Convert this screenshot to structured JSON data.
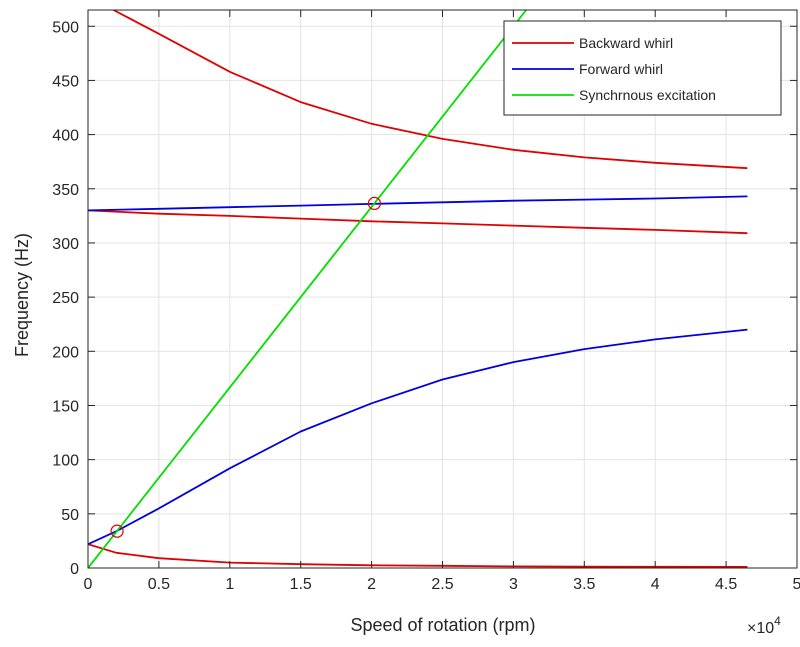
{
  "chart_data": {
    "type": "line",
    "title": "",
    "xlabel": "Speed of rotation (rpm)",
    "ylabel": "Frequency (Hz)",
    "x_exponent_label": "×10",
    "x_exponent_power": "4",
    "xlim": [
      0,
      50000
    ],
    "ylim": [
      0,
      515
    ],
    "xticks": [
      0,
      5000,
      10000,
      15000,
      20000,
      25000,
      30000,
      35000,
      40000,
      45000,
      50000
    ],
    "xtick_labels": [
      "0",
      "0.5",
      "1",
      "1.5",
      "2",
      "2.5",
      "3",
      "3.5",
      "4",
      "4.5",
      "5"
    ],
    "yticks": [
      0,
      50,
      100,
      150,
      200,
      250,
      300,
      350,
      400,
      450,
      500
    ],
    "ytick_labels": [
      "0",
      "50",
      "100",
      "150",
      "200",
      "250",
      "300",
      "350",
      "400",
      "450",
      "500"
    ],
    "grid": true,
    "legend_position": "top-right",
    "legend": [
      {
        "label": "Backward whirl",
        "color": "#e00000"
      },
      {
        "label": "Forward whirl",
        "color": "#0000e0"
      },
      {
        "label": "Synchrnous excitation",
        "color": "#00e000"
      }
    ],
    "series": [
      {
        "group": "Backward whirl",
        "color": "#e00000",
        "x": [
          0,
          2000,
          5000,
          10000,
          15000,
          20000,
          25000,
          30000,
          35000,
          40000,
          46500
        ],
        "y": [
          22,
          14,
          9,
          5,
          3.5,
          2.5,
          2,
          1.5,
          1.3,
          1.1,
          1
        ]
      },
      {
        "group": "Backward whirl",
        "color": "#e00000",
        "x": [
          0,
          5000,
          10000,
          15000,
          20000,
          25000,
          30000,
          35000,
          40000,
          46500
        ],
        "y": [
          330,
          327,
          325,
          322.5,
          320,
          318,
          316,
          314,
          312,
          309
        ]
      },
      {
        "group": "Backward whirl",
        "color": "#e00000",
        "x": [
          1800,
          5000,
          10000,
          15000,
          20000,
          25000,
          30000,
          35000,
          40000,
          46500
        ],
        "y": [
          515,
          493,
          458,
          430,
          410,
          396,
          386,
          379,
          374,
          369
        ]
      },
      {
        "group": "Forward whirl",
        "color": "#0000e0",
        "x": [
          0,
          2000,
          5000,
          10000,
          15000,
          20000,
          25000,
          30000,
          35000,
          40000,
          46500
        ],
        "y": [
          22,
          34,
          55,
          92,
          126,
          152,
          174,
          190,
          202,
          211,
          220
        ]
      },
      {
        "group": "Forward whirl",
        "color": "#0000e0",
        "x": [
          0,
          5000,
          10000,
          15000,
          20000,
          25000,
          30000,
          35000,
          40000,
          46500
        ],
        "y": [
          330,
          331.5,
          333,
          334.5,
          336,
          337.5,
          339,
          340,
          341,
          343
        ]
      },
      {
        "group": "Synchrnous excitation",
        "color": "#00e000",
        "x": [
          0,
          30900
        ],
        "y": [
          0,
          515
        ]
      }
    ],
    "markers": [
      {
        "x": 2050,
        "y": 34
      },
      {
        "x": 20200,
        "y": 336.5
      }
    ]
  }
}
